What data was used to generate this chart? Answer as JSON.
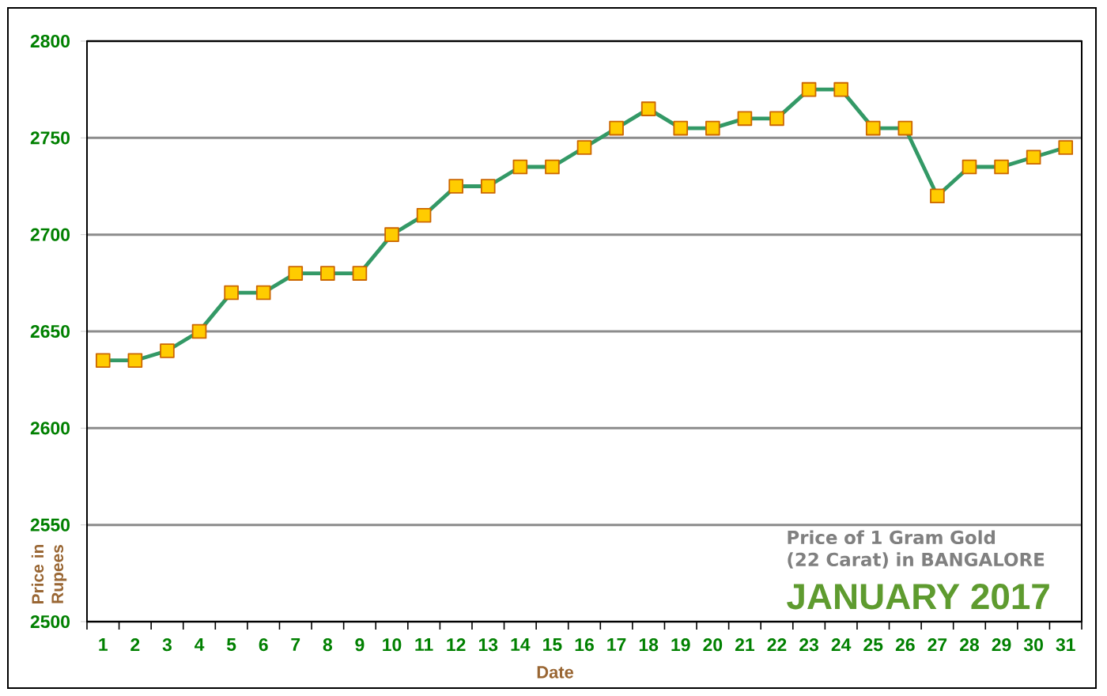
{
  "chart_data": {
    "type": "line",
    "title": "Price of 1 Gram Gold (22 Carat) in BANGALORE",
    "subtitle": "JANUARY 2017",
    "xlabel": "Date",
    "ylabel": "Price in Rupees",
    "categories": [
      "1",
      "2",
      "3",
      "4",
      "5",
      "6",
      "7",
      "8",
      "9",
      "10",
      "11",
      "12",
      "13",
      "14",
      "15",
      "16",
      "17",
      "18",
      "19",
      "20",
      "21",
      "22",
      "23",
      "24",
      "25",
      "26",
      "27",
      "28",
      "29",
      "30",
      "31"
    ],
    "series": [
      {
        "color": "#339966",
        "values": [
          2635,
          2635,
          2640,
          2650,
          2670,
          2670,
          2680,
          2680,
          2680,
          2700,
          2710,
          2725,
          2725,
          2735,
          2735,
          2745,
          2755,
          2765,
          2755,
          2755,
          2760,
          2760,
          2775,
          2775,
          2755,
          2755,
          2720,
          2735,
          2735,
          2740,
          2745
        ]
      }
    ],
    "ylim": [
      2500,
      2800
    ],
    "yticks": [
      2500,
      2550,
      2600,
      2650,
      2700,
      2750,
      2800
    ],
    "grid": "y",
    "marker": "square",
    "line_style": "solid"
  }
}
